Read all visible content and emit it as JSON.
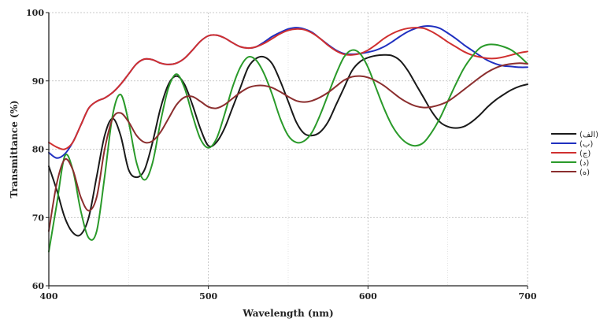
{
  "chart_data": {
    "type": "line",
    "title": "",
    "xlabel": "Wavelength (nm)",
    "ylabel": "Transmittance (%)",
    "xlim": [
      400,
      700
    ],
    "ylim": [
      60,
      100
    ],
    "xticks": [
      "400",
      "500",
      "600",
      "700"
    ],
    "yticks": [
      "60",
      "70",
      "80",
      "90",
      "100"
    ],
    "grid": true,
    "legend_position": "right",
    "series": [
      {
        "name": "(الف)",
        "color": "#1a1a1a",
        "x": [
          400,
          405,
          410,
          415,
          420,
          425,
          430,
          435,
          440,
          445,
          450,
          455,
          460,
          465,
          470,
          475,
          480,
          485,
          490,
          495,
          500,
          505,
          510,
          515,
          520,
          525,
          530,
          535,
          540,
          545,
          550,
          555,
          560,
          565,
          570,
          575,
          580,
          585,
          590,
          595,
          600,
          605,
          610,
          615,
          620,
          625,
          630,
          635,
          640,
          645,
          650,
          655,
          660,
          665,
          670,
          675,
          680,
          685,
          690,
          695,
          700
        ],
        "y": [
          77.5,
          74,
          70,
          67.8,
          67.5,
          70,
          76,
          82,
          84.5,
          82,
          77,
          75.9,
          77,
          81,
          86,
          89.5,
          90.7,
          89.5,
          86.5,
          83,
          80.5,
          81,
          83,
          86,
          89,
          92,
          93.3,
          93.5,
          92.5,
          90,
          87,
          84,
          82.3,
          82,
          82.5,
          84,
          86.5,
          89,
          91.5,
          92.8,
          93.4,
          93.7,
          93.8,
          93.7,
          93,
          91.5,
          89.5,
          87.5,
          85.5,
          84,
          83.3,
          83.1,
          83.3,
          84,
          85,
          86.2,
          87.2,
          88,
          88.7,
          89.2,
          89.5
        ]
      },
      {
        "name": "(ب)",
        "color": "#2030c0",
        "x": [
          400,
          405,
          410,
          415,
          420,
          425,
          430,
          435,
          440,
          445,
          450,
          455,
          460,
          465,
          470,
          475,
          480,
          485,
          490,
          495,
          500,
          505,
          510,
          515,
          520,
          525,
          530,
          535,
          540,
          545,
          550,
          555,
          560,
          565,
          570,
          575,
          580,
          585,
          590,
          595,
          600,
          605,
          610,
          615,
          620,
          625,
          630,
          635,
          640,
          645,
          650,
          655,
          660,
          665,
          670,
          675,
          680,
          685,
          690,
          695,
          700
        ],
        "y": [
          79.5,
          78.7,
          79.3,
          81,
          83.5,
          86,
          87,
          87.5,
          88.3,
          89.5,
          91,
          92.5,
          93.2,
          93.1,
          92.6,
          92.4,
          92.6,
          93.3,
          94.5,
          95.8,
          96.6,
          96.7,
          96.3,
          95.6,
          95,
          94.8,
          95,
          95.7,
          96.5,
          97.1,
          97.6,
          97.8,
          97.6,
          97.1,
          96.2,
          95.3,
          94.5,
          94,
          93.9,
          94,
          94.2,
          94.5,
          95,
          95.7,
          96.5,
          97.2,
          97.7,
          98,
          98,
          97.7,
          97,
          96.2,
          95.3,
          94.5,
          93.7,
          93,
          92.5,
          92.2,
          92.1,
          92,
          92
        ]
      },
      {
        "name": "(ج)",
        "color": "#d03030",
        "x": [
          400,
          405,
          410,
          415,
          420,
          425,
          430,
          435,
          440,
          445,
          450,
          455,
          460,
          465,
          470,
          475,
          480,
          485,
          490,
          495,
          500,
          505,
          510,
          515,
          520,
          525,
          530,
          535,
          540,
          545,
          550,
          555,
          560,
          565,
          570,
          575,
          580,
          585,
          590,
          595,
          600,
          605,
          610,
          615,
          620,
          625,
          630,
          635,
          640,
          645,
          650,
          655,
          660,
          665,
          670,
          675,
          680,
          685,
          690,
          695,
          700
        ],
        "y": [
          81,
          80.3,
          80,
          81,
          83.5,
          86,
          87,
          87.5,
          88.3,
          89.5,
          91,
          92.5,
          93.2,
          93.1,
          92.6,
          92.4,
          92.6,
          93.3,
          94.5,
          95.8,
          96.6,
          96.7,
          96.3,
          95.6,
          95,
          94.8,
          95,
          95.5,
          96.2,
          96.9,
          97.4,
          97.6,
          97.5,
          97,
          96.2,
          95.2,
          94.4,
          93.9,
          93.8,
          94,
          94.5,
          95.3,
          96.2,
          96.9,
          97.4,
          97.7,
          97.8,
          97.7,
          97.2,
          96.5,
          95.7,
          95,
          94.3,
          93.8,
          93.5,
          93.3,
          93.3,
          93.5,
          93.8,
          94.1,
          94.3
        ]
      },
      {
        "name": "(د)",
        "color": "#2a9a2a",
        "x": [
          400,
          405,
          410,
          415,
          420,
          425,
          430,
          435,
          440,
          445,
          450,
          455,
          460,
          465,
          470,
          475,
          480,
          485,
          490,
          495,
          500,
          505,
          510,
          515,
          520,
          525,
          530,
          535,
          540,
          545,
          550,
          555,
          560,
          565,
          570,
          575,
          580,
          585,
          590,
          595,
          600,
          605,
          610,
          615,
          620,
          625,
          630,
          635,
          640,
          645,
          650,
          655,
          660,
          665,
          670,
          675,
          680,
          685,
          690,
          695,
          700
        ],
        "y": [
          65,
          72,
          79,
          77,
          71,
          67,
          68,
          76,
          85,
          88,
          84,
          78,
          75.5,
          78,
          84,
          89,
          91,
          89,
          85,
          81.5,
          80.2,
          81.5,
          85,
          89,
          92,
          93.5,
          93,
          91,
          88,
          84.5,
          82,
          81,
          81.2,
          82.5,
          85,
          88,
          91,
          93.5,
          94.5,
          94,
          92,
          89,
          86,
          83.5,
          81.8,
          80.8,
          80.5,
          81,
          82.5,
          84.5,
          87,
          89.5,
          91.8,
          93.5,
          94.8,
          95.3,
          95.3,
          95,
          94.5,
          93.6,
          92.5
        ]
      },
      {
        "name": "(ه)",
        "color": "#8b2e2e",
        "x": [
          400,
          405,
          410,
          415,
          420,
          425,
          430,
          435,
          440,
          445,
          450,
          455,
          460,
          465,
          470,
          475,
          480,
          485,
          490,
          495,
          500,
          505,
          510,
          515,
          520,
          525,
          530,
          535,
          540,
          545,
          550,
          555,
          560,
          565,
          570,
          575,
          580,
          585,
          590,
          595,
          600,
          605,
          610,
          615,
          620,
          625,
          630,
          635,
          640,
          645,
          650,
          655,
          660,
          665,
          670,
          675,
          680,
          685,
          690,
          695,
          700
        ],
        "y": [
          68,
          75,
          78.5,
          77,
          73,
          71,
          73,
          80,
          84.5,
          85.3,
          84,
          82,
          81,
          81.2,
          82.5,
          84.5,
          86.5,
          87.6,
          87.7,
          87,
          86.2,
          86,
          86.5,
          87.4,
          88.3,
          89,
          89.3,
          89.3,
          89,
          88.4,
          87.7,
          87.1,
          86.9,
          87.1,
          87.6,
          88.3,
          89.2,
          90.1,
          90.6,
          90.7,
          90.5,
          90,
          89.3,
          88.4,
          87.5,
          86.8,
          86.3,
          86.1,
          86.2,
          86.5,
          87,
          87.8,
          88.7,
          89.6,
          90.5,
          91.3,
          91.9,
          92.3,
          92.5,
          92.6,
          92.5
        ]
      }
    ]
  }
}
